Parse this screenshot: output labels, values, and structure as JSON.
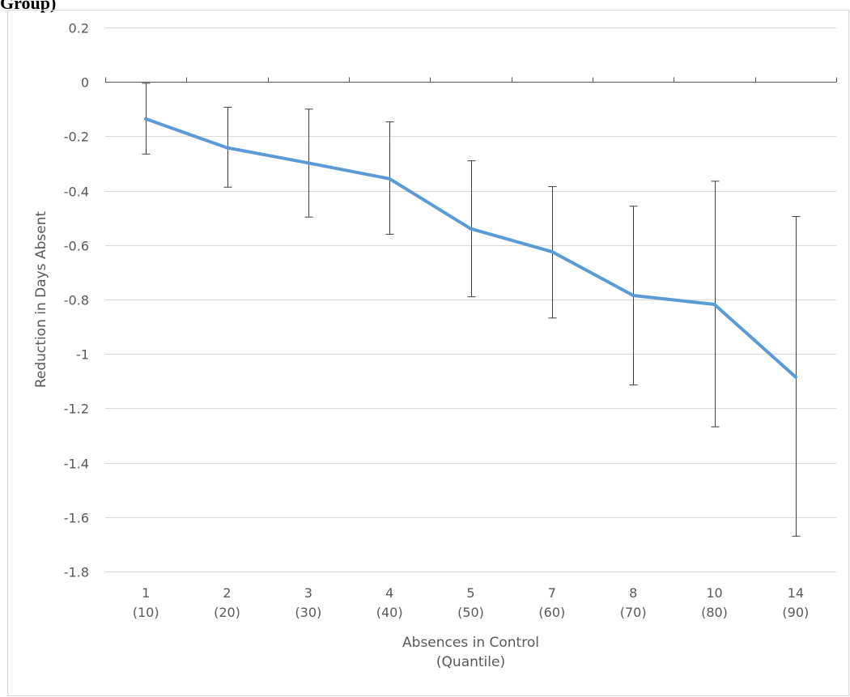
{
  "header_text": "Group)",
  "chart_data": {
    "type": "line",
    "categories": [
      [
        "1",
        "(10)"
      ],
      [
        "2",
        "(20)"
      ],
      [
        "3",
        "(30)"
      ],
      [
        "4",
        "(40)"
      ],
      [
        "5",
        "(50)"
      ],
      [
        "7",
        "(60)"
      ],
      [
        "8",
        "(70)"
      ],
      [
        "10",
        "(80)"
      ],
      [
        "14",
        "(90)"
      ]
    ],
    "values": [
      -0.136,
      -0.242,
      -0.298,
      -0.356,
      -0.54,
      -0.624,
      -0.785,
      -0.818,
      -1.085
    ],
    "error_low": [
      -0.265,
      -0.387,
      -0.497,
      -0.56,
      -0.79,
      -0.868,
      -1.114,
      -1.268,
      -1.67
    ],
    "error_high": [
      -0.005,
      -0.093,
      -0.1,
      -0.147,
      -0.29,
      -0.385,
      -0.457,
      -0.365,
      -0.495
    ],
    "xlabel": [
      "Absences in Control",
      "(Quantile)"
    ],
    "ylabel": "Reduction in Days Absent",
    "ylim": [
      -1.8,
      0.2
    ],
    "yticks": [
      0.2,
      0,
      -0.2,
      -0.4,
      -0.6,
      -0.8,
      -1,
      -1.2,
      -1.4,
      -1.6,
      -1.8
    ],
    "ytick_labels": [
      "0.2",
      "0",
      "-0.2",
      "-0.4",
      "-0.6",
      "-0.8",
      "-1",
      "-1.2",
      "-1.4",
      "-1.6",
      "-1.8"
    ],
    "grid": true,
    "line_color": "#5b9bd5",
    "grid_color": "#d9d9d9",
    "axis_color": "#595959",
    "error_bar_color": "#404040"
  }
}
